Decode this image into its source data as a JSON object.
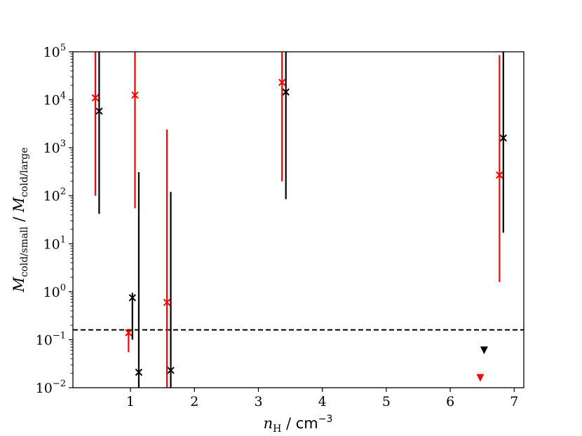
{
  "chart_data": {
    "type": "scatter",
    "title": "",
    "xlabel": {
      "var": "n",
      "sub": "H",
      "sep": " / ",
      "unit": "cm",
      "unit_exp": "−3"
    },
    "ylabel": {
      "var1": "M",
      "sub1": "cold/small",
      "sep": " / ",
      "var2": "M",
      "sub2": "cold/large"
    },
    "xlim": [
      0.1,
      7.15
    ],
    "ylim": [
      0.01,
      100000
    ],
    "yscale": "log",
    "grid": false,
    "x_ticks": [
      {
        "value": 1,
        "label": "1"
      },
      {
        "value": 2,
        "label": "2"
      },
      {
        "value": 3,
        "label": "3"
      },
      {
        "value": 4,
        "label": "4"
      },
      {
        "value": 5,
        "label": "5"
      },
      {
        "value": 6,
        "label": "6"
      },
      {
        "value": 7,
        "label": "7"
      }
    ],
    "y_ticks": [
      {
        "value": 0.01,
        "base": "10",
        "exp": "−2"
      },
      {
        "value": 0.1,
        "base": "10",
        "exp": "−1"
      },
      {
        "value": 1,
        "base": "10",
        "exp": "0"
      },
      {
        "value": 10,
        "base": "10",
        "exp": "1"
      },
      {
        "value": 100,
        "base": "10",
        "exp": "2"
      },
      {
        "value": 1000,
        "base": "10",
        "exp": "3"
      },
      {
        "value": 10000,
        "base": "10",
        "exp": "4"
      },
      {
        "value": 100000,
        "base": "10",
        "exp": "5"
      }
    ],
    "reference_line": {
      "y": 0.16,
      "style": "dashed",
      "color": "#000000"
    },
    "series": [
      {
        "color": "#ff0000",
        "points": [
          {
            "x": 0.45,
            "y": 11000,
            "ylo": 100,
            "yhi": 100000
          },
          {
            "x": 0.97,
            "y": 0.14,
            "ylo": 0.055,
            "yhi": 0.16
          },
          {
            "x": 1.07,
            "y": 12500,
            "ylo": 55,
            "yhi": 100000
          },
          {
            "x": 1.57,
            "y": 0.6,
            "ylo": 0.01,
            "yhi": 2400
          },
          {
            "x": 3.37,
            "y": 23000,
            "ylo": 200,
            "yhi": 100000
          },
          {
            "x": 6.77,
            "y": 270,
            "ylo": 1.6,
            "yhi": 85000
          }
        ],
        "upper_limits": [
          {
            "x": 6.47,
            "y": 0.016
          }
        ]
      },
      {
        "color": "#000000",
        "points": [
          {
            "x": 0.51,
            "y": 5800,
            "ylo": 42,
            "yhi": 100000
          },
          {
            "x": 1.03,
            "y": 0.75,
            "ylo": 0.1,
            "yhi": 0.95
          },
          {
            "x": 1.13,
            "y": 0.021,
            "ylo": 0.01,
            "yhi": 310
          },
          {
            "x": 1.63,
            "y": 0.023,
            "ylo": 0.01,
            "yhi": 120
          },
          {
            "x": 3.43,
            "y": 14500,
            "ylo": 85,
            "yhi": 100000
          },
          {
            "x": 6.83,
            "y": 1600,
            "ylo": 17,
            "yhi": 100000
          }
        ],
        "upper_limits": [
          {
            "x": 6.53,
            "y": 0.06
          }
        ]
      }
    ]
  }
}
